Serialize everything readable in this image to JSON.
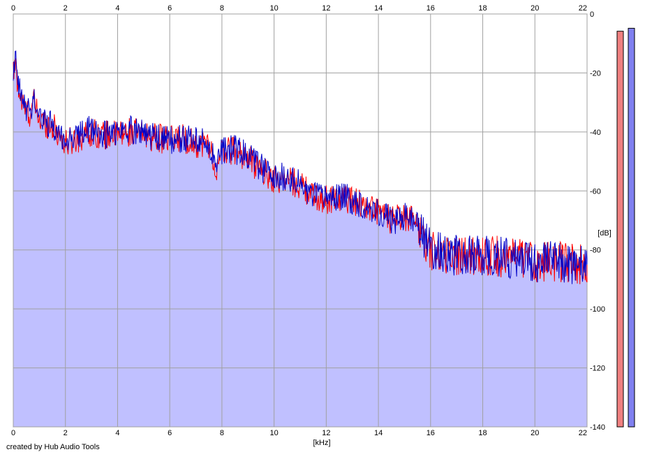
{
  "footer_text": "created by Hub Audio Tools",
  "chart_data": {
    "type": "area",
    "xlabel": "[kHz]",
    "ylabel": "[dB]",
    "xlim": [
      0,
      22
    ],
    "ylim": [
      -140,
      0
    ],
    "x_ticks": [
      0,
      2,
      4,
      6,
      8,
      10,
      12,
      14,
      16,
      18,
      20,
      22
    ],
    "y_ticks": [
      0,
      -20,
      -40,
      -60,
      -80,
      -100,
      -120,
      -140
    ],
    "grid": true,
    "colors": {
      "fill": "#c0c0ff",
      "grid": "#a0a0a0",
      "red_series": "#ff0000",
      "blue_series": "#0000c8",
      "red_meter": "#f08080",
      "blue_meter": "#8080f0"
    },
    "series": [
      {
        "color_key": "red_series",
        "x": [
          0,
          0.1,
          0.2,
          0.4,
          0.6,
          0.8,
          1,
          1.5,
          2,
          2.5,
          3,
          3.5,
          4,
          4.5,
          5,
          5.5,
          6,
          6.5,
          7,
          7.5,
          7.8,
          8,
          8.5,
          9,
          9.5,
          10,
          10.5,
          11,
          11.5,
          12,
          12.5,
          13,
          13.5,
          14,
          14.5,
          15,
          15.5,
          15.8,
          16,
          16.5,
          17,
          17.5,
          18,
          18.5,
          19,
          19.5,
          20,
          20.5,
          21,
          21.5,
          22
        ],
        "y": [
          -20,
          -18,
          -26,
          -32,
          -34,
          -30,
          -36,
          -38,
          -44,
          -42,
          -40,
          -41,
          -41,
          -40,
          -41,
          -42,
          -43,
          -42,
          -44,
          -44,
          -54,
          -47,
          -46,
          -49,
          -53,
          -56,
          -56,
          -58,
          -62,
          -63,
          -62,
          -63,
          -65,
          -67,
          -70,
          -69,
          -70,
          -78,
          -80,
          -81,
          -82,
          -82,
          -82,
          -82,
          -83,
          -83,
          -84,
          -84,
          -84,
          -85,
          -85
        ]
      },
      {
        "color_key": "blue_series",
        "x": [
          0,
          0.1,
          0.2,
          0.4,
          0.6,
          0.8,
          1,
          1.5,
          2,
          2.5,
          3,
          3.5,
          4,
          4.5,
          5,
          5.5,
          6,
          6.5,
          7,
          7.5,
          7.8,
          8,
          8.5,
          9,
          9.5,
          10,
          10.5,
          11,
          11.5,
          12,
          12.5,
          13,
          13.5,
          14,
          14.5,
          15,
          15.5,
          15.8,
          16,
          16.5,
          17,
          17.5,
          18,
          18.5,
          19,
          19.5,
          20,
          20.5,
          21,
          21.5,
          22
        ],
        "y": [
          -19,
          -17,
          -25,
          -31,
          -33,
          -29,
          -35,
          -38,
          -43,
          -41,
          -39,
          -41,
          -40,
          -39,
          -40,
          -42,
          -43,
          -42,
          -43,
          -44,
          -52,
          -46,
          -46,
          -48,
          -52,
          -56,
          -55,
          -58,
          -62,
          -62,
          -62,
          -63,
          -65,
          -67,
          -70,
          -69,
          -70,
          -77,
          -80,
          -81,
          -82,
          -82,
          -82,
          -82,
          -83,
          -83,
          -84,
          -84,
          -84,
          -85,
          -85
        ]
      }
    ],
    "meters": [
      {
        "color_key": "red_meter",
        "level_db": -3
      },
      {
        "color_key": "blue_meter",
        "level_db": -2
      }
    ]
  }
}
